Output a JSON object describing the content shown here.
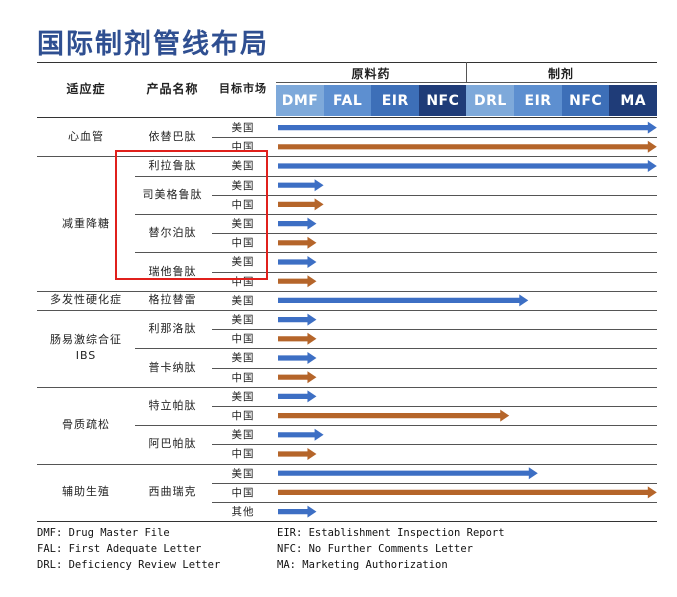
{
  "title": "国际制剂管线布局",
  "header": {
    "indication": "适应症",
    "product": "产品名称",
    "market": "目标市场",
    "group_api": "原料药",
    "group_formulation": "制剂",
    "stages": [
      "DMF",
      "FAL",
      "EIR",
      "NFC",
      "DRL",
      "EIR",
      "NFC",
      "MA"
    ],
    "stage_colors": [
      "#7ea9da",
      "#5d8fd0",
      "#3d6fb8",
      "#1f3c78",
      "#7ea9da",
      "#5d8fd0",
      "#3d6fb8",
      "#1f3c78"
    ]
  },
  "colors": {
    "usa": "#3d6fc4",
    "china": "#b5652a",
    "other": "#3d6fc4",
    "title": "#2f4f91",
    "highlight": "#e0201c"
  },
  "indications": [
    {
      "label": "心血管",
      "label2": ""
    },
    {
      "label": "减重降糖",
      "label2": ""
    },
    {
      "label": "多发性硬化症",
      "label2": ""
    },
    {
      "label": "肠易激综合征",
      "label2": "IBS"
    },
    {
      "label": "骨质疏松",
      "label2": ""
    },
    {
      "label": "辅助生殖",
      "label2": ""
    }
  ],
  "products": [
    "依替巴肽",
    "利拉鲁肽",
    "司美格鲁肽",
    "替尔泊肽",
    "瑞他鲁肽",
    "格拉替雷",
    "利那洛肽",
    "普卡纳肽",
    "特立帕肽",
    "阿巴帕肽",
    "西曲瑞克"
  ],
  "rows": [
    {
      "market": "美国",
      "type": "usa",
      "progress": 8.0
    },
    {
      "market": "中国",
      "type": "china",
      "progress": 8.0
    },
    {
      "market": "美国",
      "type": "usa",
      "progress": 8.0
    },
    {
      "market": "美国",
      "type": "usa",
      "progress": 1.0
    },
    {
      "market": "中国",
      "type": "china",
      "progress": 1.0
    },
    {
      "market": "美国",
      "type": "usa",
      "progress": 0.85
    },
    {
      "market": "中国",
      "type": "china",
      "progress": 0.85
    },
    {
      "market": "美国",
      "type": "usa",
      "progress": 0.85
    },
    {
      "market": "中国",
      "type": "china",
      "progress": 0.85
    },
    {
      "market": "美国",
      "type": "usa",
      "progress": 5.3
    },
    {
      "market": "美国",
      "type": "usa",
      "progress": 0.85
    },
    {
      "market": "中国",
      "type": "china",
      "progress": 0.85
    },
    {
      "market": "美国",
      "type": "usa",
      "progress": 0.85
    },
    {
      "market": "中国",
      "type": "china",
      "progress": 0.85
    },
    {
      "market": "美国",
      "type": "usa",
      "progress": 0.85
    },
    {
      "market": "中国",
      "type": "china",
      "progress": 4.9
    },
    {
      "market": "美国",
      "type": "usa",
      "progress": 1.0
    },
    {
      "market": "中国",
      "type": "china",
      "progress": 0.85
    },
    {
      "market": "美国",
      "type": "usa",
      "progress": 5.5
    },
    {
      "market": "中国",
      "type": "china",
      "progress": 8.0
    },
    {
      "market": "其他",
      "type": "other",
      "progress": 0.85
    }
  ],
  "legend": [
    "DMF: Drug Master File",
    "FAL: First Adequate Letter",
    "DRL: Deficiency Review Letter",
    "EIR: Establishment Inspection Report",
    "NFC: No Further Comments Letter",
    "MA: Marketing Authorization"
  ]
}
